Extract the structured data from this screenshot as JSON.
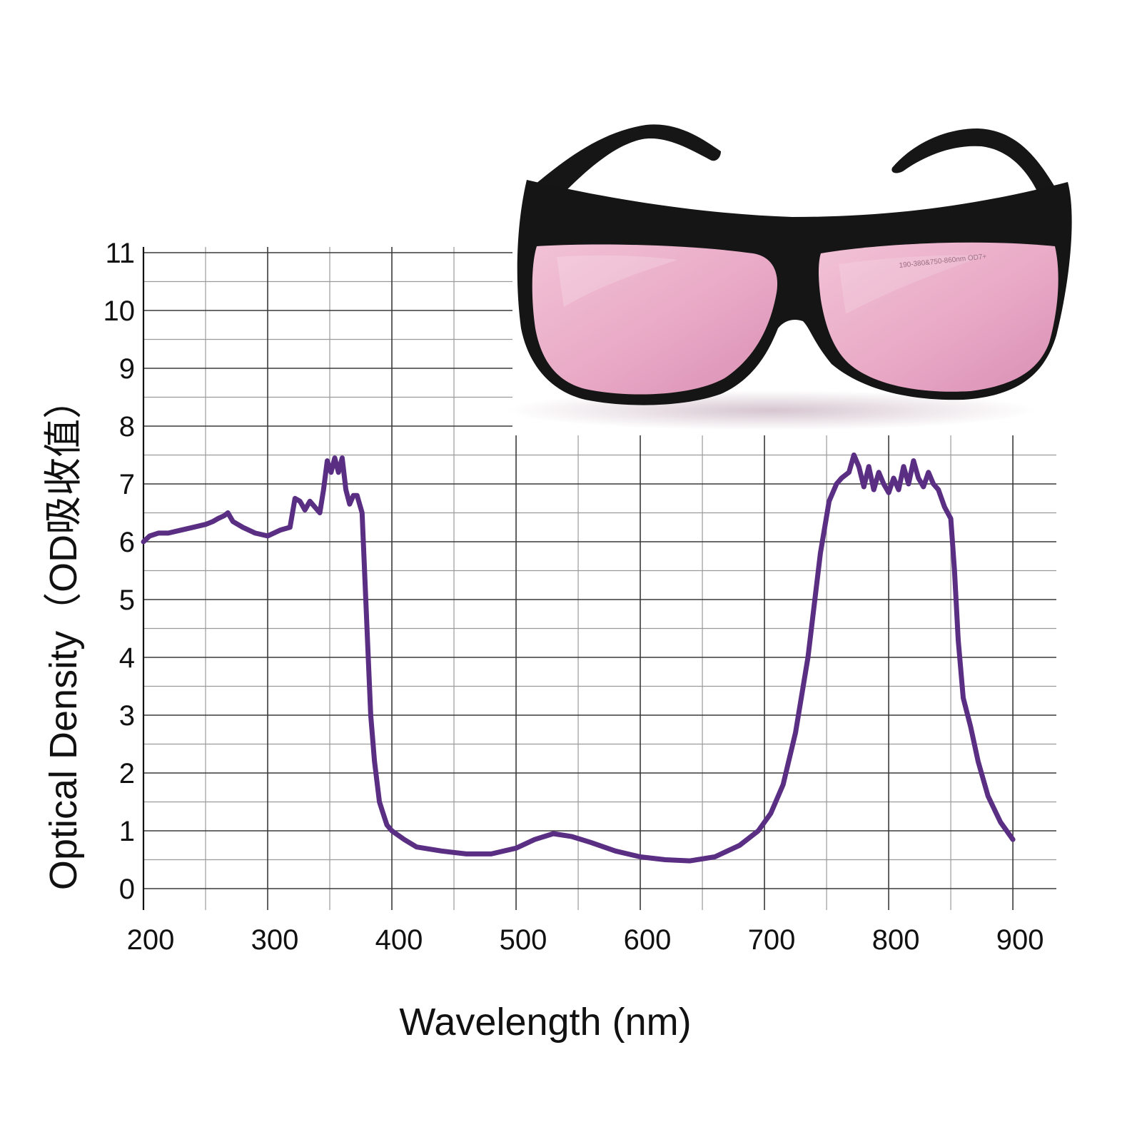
{
  "chart_data": {
    "type": "line",
    "title": "",
    "xlabel": "Wavelength (nm)",
    "ylabel": "Optical Density（OD吸收值）",
    "xlim": [
      200,
      935
    ],
    "ylim": [
      0,
      11
    ],
    "x_ticks": [
      200,
      300,
      400,
      500,
      600,
      700,
      800,
      900
    ],
    "y_ticks": [
      0,
      1,
      2,
      3,
      4,
      5,
      6,
      7,
      8,
      9,
      10,
      11
    ],
    "grid": true,
    "grid_minor_x": 50,
    "grid_minor_y": 0.5,
    "legend": "none",
    "colors": {
      "line": "#5a2e83",
      "grid_major": "#3a3a3a",
      "grid_minor": "#9a9a9a"
    },
    "series": [
      {
        "x": [
          200,
          205,
          212,
          220,
          230,
          240,
          250,
          256,
          260,
          265,
          268,
          272,
          280,
          290,
          300,
          310,
          318,
          322,
          326,
          330,
          334,
          338,
          342,
          345,
          348,
          351,
          354,
          357,
          360,
          363,
          366,
          369,
          372,
          376,
          380,
          383,
          386,
          390,
          393,
          396,
          400,
          410,
          420,
          440,
          460,
          480,
          500,
          515,
          530,
          545,
          560,
          580,
          600,
          620,
          640,
          660,
          680,
          695,
          705,
          715,
          725,
          735,
          745,
          752,
          758,
          762,
          768,
          772,
          776,
          780,
          784,
          788,
          792,
          796,
          800,
          804,
          808,
          812,
          816,
          820,
          824,
          828,
          832,
          836,
          840,
          845,
          850,
          853,
          856,
          860,
          866,
          872,
          880,
          890,
          900
        ],
        "y": [
          6.0,
          6.1,
          6.15,
          6.15,
          6.2,
          6.25,
          6.3,
          6.35,
          6.4,
          6.45,
          6.5,
          6.35,
          6.25,
          6.15,
          6.1,
          6.2,
          6.25,
          6.75,
          6.7,
          6.55,
          6.7,
          6.6,
          6.5,
          6.9,
          7.4,
          7.2,
          7.45,
          7.2,
          7.45,
          6.9,
          6.65,
          6.8,
          6.8,
          6.5,
          4.5,
          3.0,
          2.2,
          1.5,
          1.3,
          1.1,
          1.0,
          0.85,
          0.72,
          0.65,
          0.6,
          0.6,
          0.7,
          0.85,
          0.95,
          0.9,
          0.8,
          0.65,
          0.55,
          0.5,
          0.48,
          0.55,
          0.75,
          1.0,
          1.3,
          1.8,
          2.7,
          4.0,
          5.8,
          6.7,
          7.0,
          7.1,
          7.2,
          7.5,
          7.3,
          6.95,
          7.3,
          6.9,
          7.2,
          7.0,
          6.85,
          7.1,
          6.9,
          7.3,
          7.0,
          7.4,
          7.1,
          6.95,
          7.2,
          7.0,
          6.9,
          6.6,
          6.4,
          5.5,
          4.3,
          3.3,
          2.8,
          2.2,
          1.6,
          1.15,
          0.85
        ]
      }
    ]
  },
  "product": {
    "lens_marking": "190-380&750-860nm OD7+"
  }
}
